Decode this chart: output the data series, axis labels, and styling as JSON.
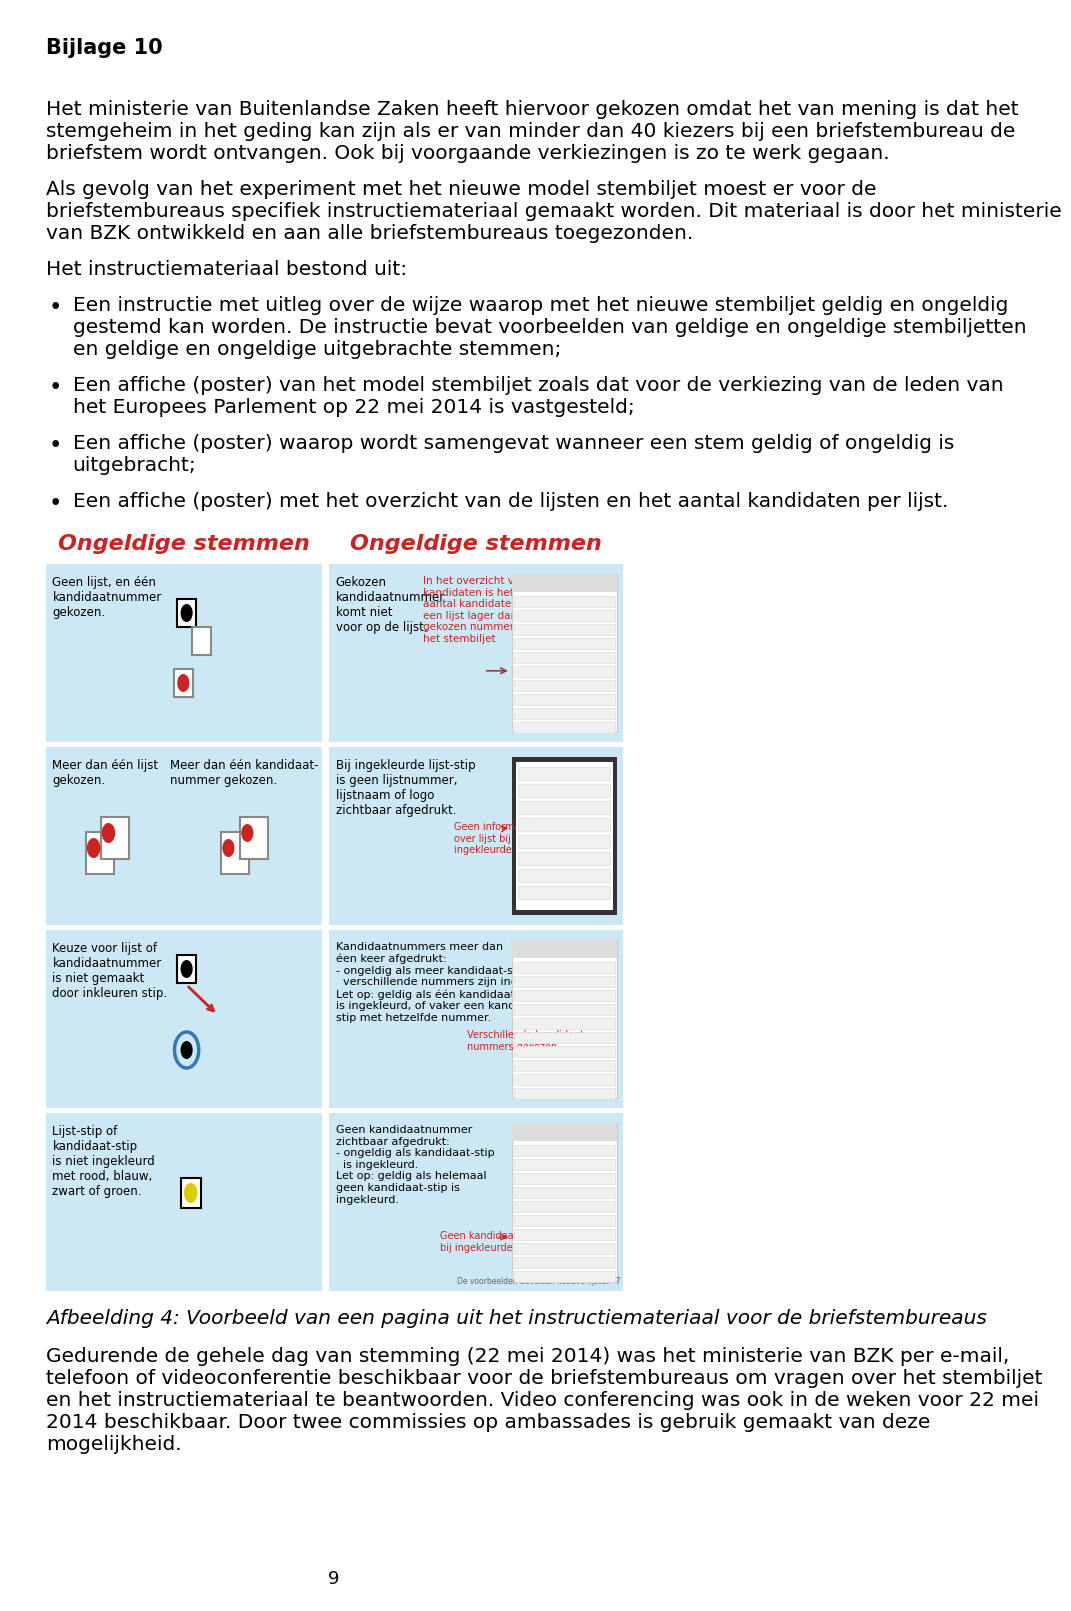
{
  "background_color": "#ffffff",
  "page_number": "9",
  "header": "Bijlage 10",
  "para1_line1": "Het ministerie van Buitenlandse Zaken heeft hiervoor gekozen omdat het van mening is dat het",
  "para1_line2": "stemgeheim in het geding kan zijn als er van minder dan 40 kiezers bij een briefstembureau de",
  "para1_line3": "briefstem wordt ontvangen. Ook bij voorgaande verkiezingen is zo te werk gegaan.",
  "para2_line1": "Als gevolg van het experiment met het nieuwe model stembiljet moest er voor de",
  "para2_line2": "briefstembureaus specifiek instructiemateriaal gemaakt worden. Dit materiaal is door het ministerie",
  "para2_line3": "van BZK ontwikkeld en aan alle briefstembureaus toegezonden.",
  "para3": "Het instructiemateriaal bestond uit:",
  "b1_line1": "Een instructie met uitleg over de wijze waarop met het nieuwe stembiljet geldig en ongeldig",
  "b1_line2": "gestemd kan worden. De instructie bevat voorbeelden van geldige en ongeldige stembiljetten",
  "b1_line3": "en geldige en ongeldige uitgebrachte stemmen;",
  "b2_line1": "Een affiche (poster) van het model stembiljet zoals dat voor de verkiezing van de leden van",
  "b2_line2": "het Europees Parlement op 22 mei 2014 is vastgesteld;",
  "b3_line1": "Een affiche (poster) waarop wordt samengevat wanneer een stem geldig of ongeldig is",
  "b3_line2": "uitgebracht;",
  "b4_line1": "Een affiche (poster) met het overzicht van de lijsten en het aantal kandidaten per lijst.",
  "sec_title_left": "Ongeldige stemmen",
  "sec_title_right": "Ongeldige stemmen",
  "lp_r0_text": "Geen lijst, en één\nkandidaatnummer\ngekozen.",
  "lp_r1_left": "Meer dan één lijst\ngekozen.",
  "lp_r1_right": "Meer dan één kandidaat-\nnummer gekozen.",
  "lp_r2_text": "Keuze voor lijst of\nkandidaatnummer\nis niet gemaakt\ndoor inkleuren stip.",
  "lp_r3_text": "Lijst-stip of\nkandidaat-stip\nis niet ingekleurd\nmet rood, blauw,\nzwart of groen.",
  "rp_r0_desc": "Gekozen\nkandidaatnummer\nkomt niet\nvoor op de lijst.",
  "rp_r0_red": "In het overzicht van\nkandidaten is het\naantal kandidaten op\neen lijst lager dan het\ngekozen nummer op\nhet stembiljet",
  "rp_r1_desc": "Bij ingekleurde lijst-stip\nis geen lijstnummer,\nlijstnaam of logo\nzichtbaar afgedrukt.",
  "rp_r1_red": "Geen informatie\nover lijst bij\ningekleurde stip",
  "rp_r2_desc": "Kandidaatnummers meer dan\néen keer afgedrukt:\n- ongeldig als meer kandidaat-stippen met\n  verschillende nummers zijn ingekleurd.\nLet op: geldig als één kandidaat-stip\nis ingekleurd, of vaker een kandidaat-\nstip met hetzelfde nummer.",
  "rp_r2_red": "Verschillende kandidaat-\nnummers gekozen",
  "rp_r3_desc": "Geen kandidaatnummer\nzichtbaar afgedrukt:\n- ongeldig als kandidaat-stip\n  is ingekleurd.\nLet op: geldig als helemaal\ngeen kandidaat-stip is\ningekleurd.",
  "rp_r3_red": "Geen kandidaatnummer\nbij ingekleurde stip",
  "footer_note": "De voorbeelden bevatten fictieve lijsten  7",
  "caption": "Afbeelding 4: Voorbeeld van een pagina uit het instructiemateriaal voor de briefstembureaus",
  "final_line1": "Gedurende de gehele dag van stemming (22 mei 2014) was het ministerie van BZK per e-mail,",
  "final_line2": "telefoon of videoconferentie beschikbaar voor de briefstembureaus om vragen over het stembiljet",
  "final_line3": "en het instructiemateriaal te beantwoorden. Video conferencing was ook in de weken voor 22 mei",
  "final_line4": "2014 beschikbaar. Door twee commissies op ambassades is gebruik gemaakt van deze",
  "final_line5": "mogelijkheid.",
  "title_color": "#e8202a",
  "light_blue": "#cce8f4",
  "text_color": "#000000",
  "red_color": "#cc2222",
  "black": "#000000",
  "white": "#ffffff",
  "gray_dark": "#555555"
}
